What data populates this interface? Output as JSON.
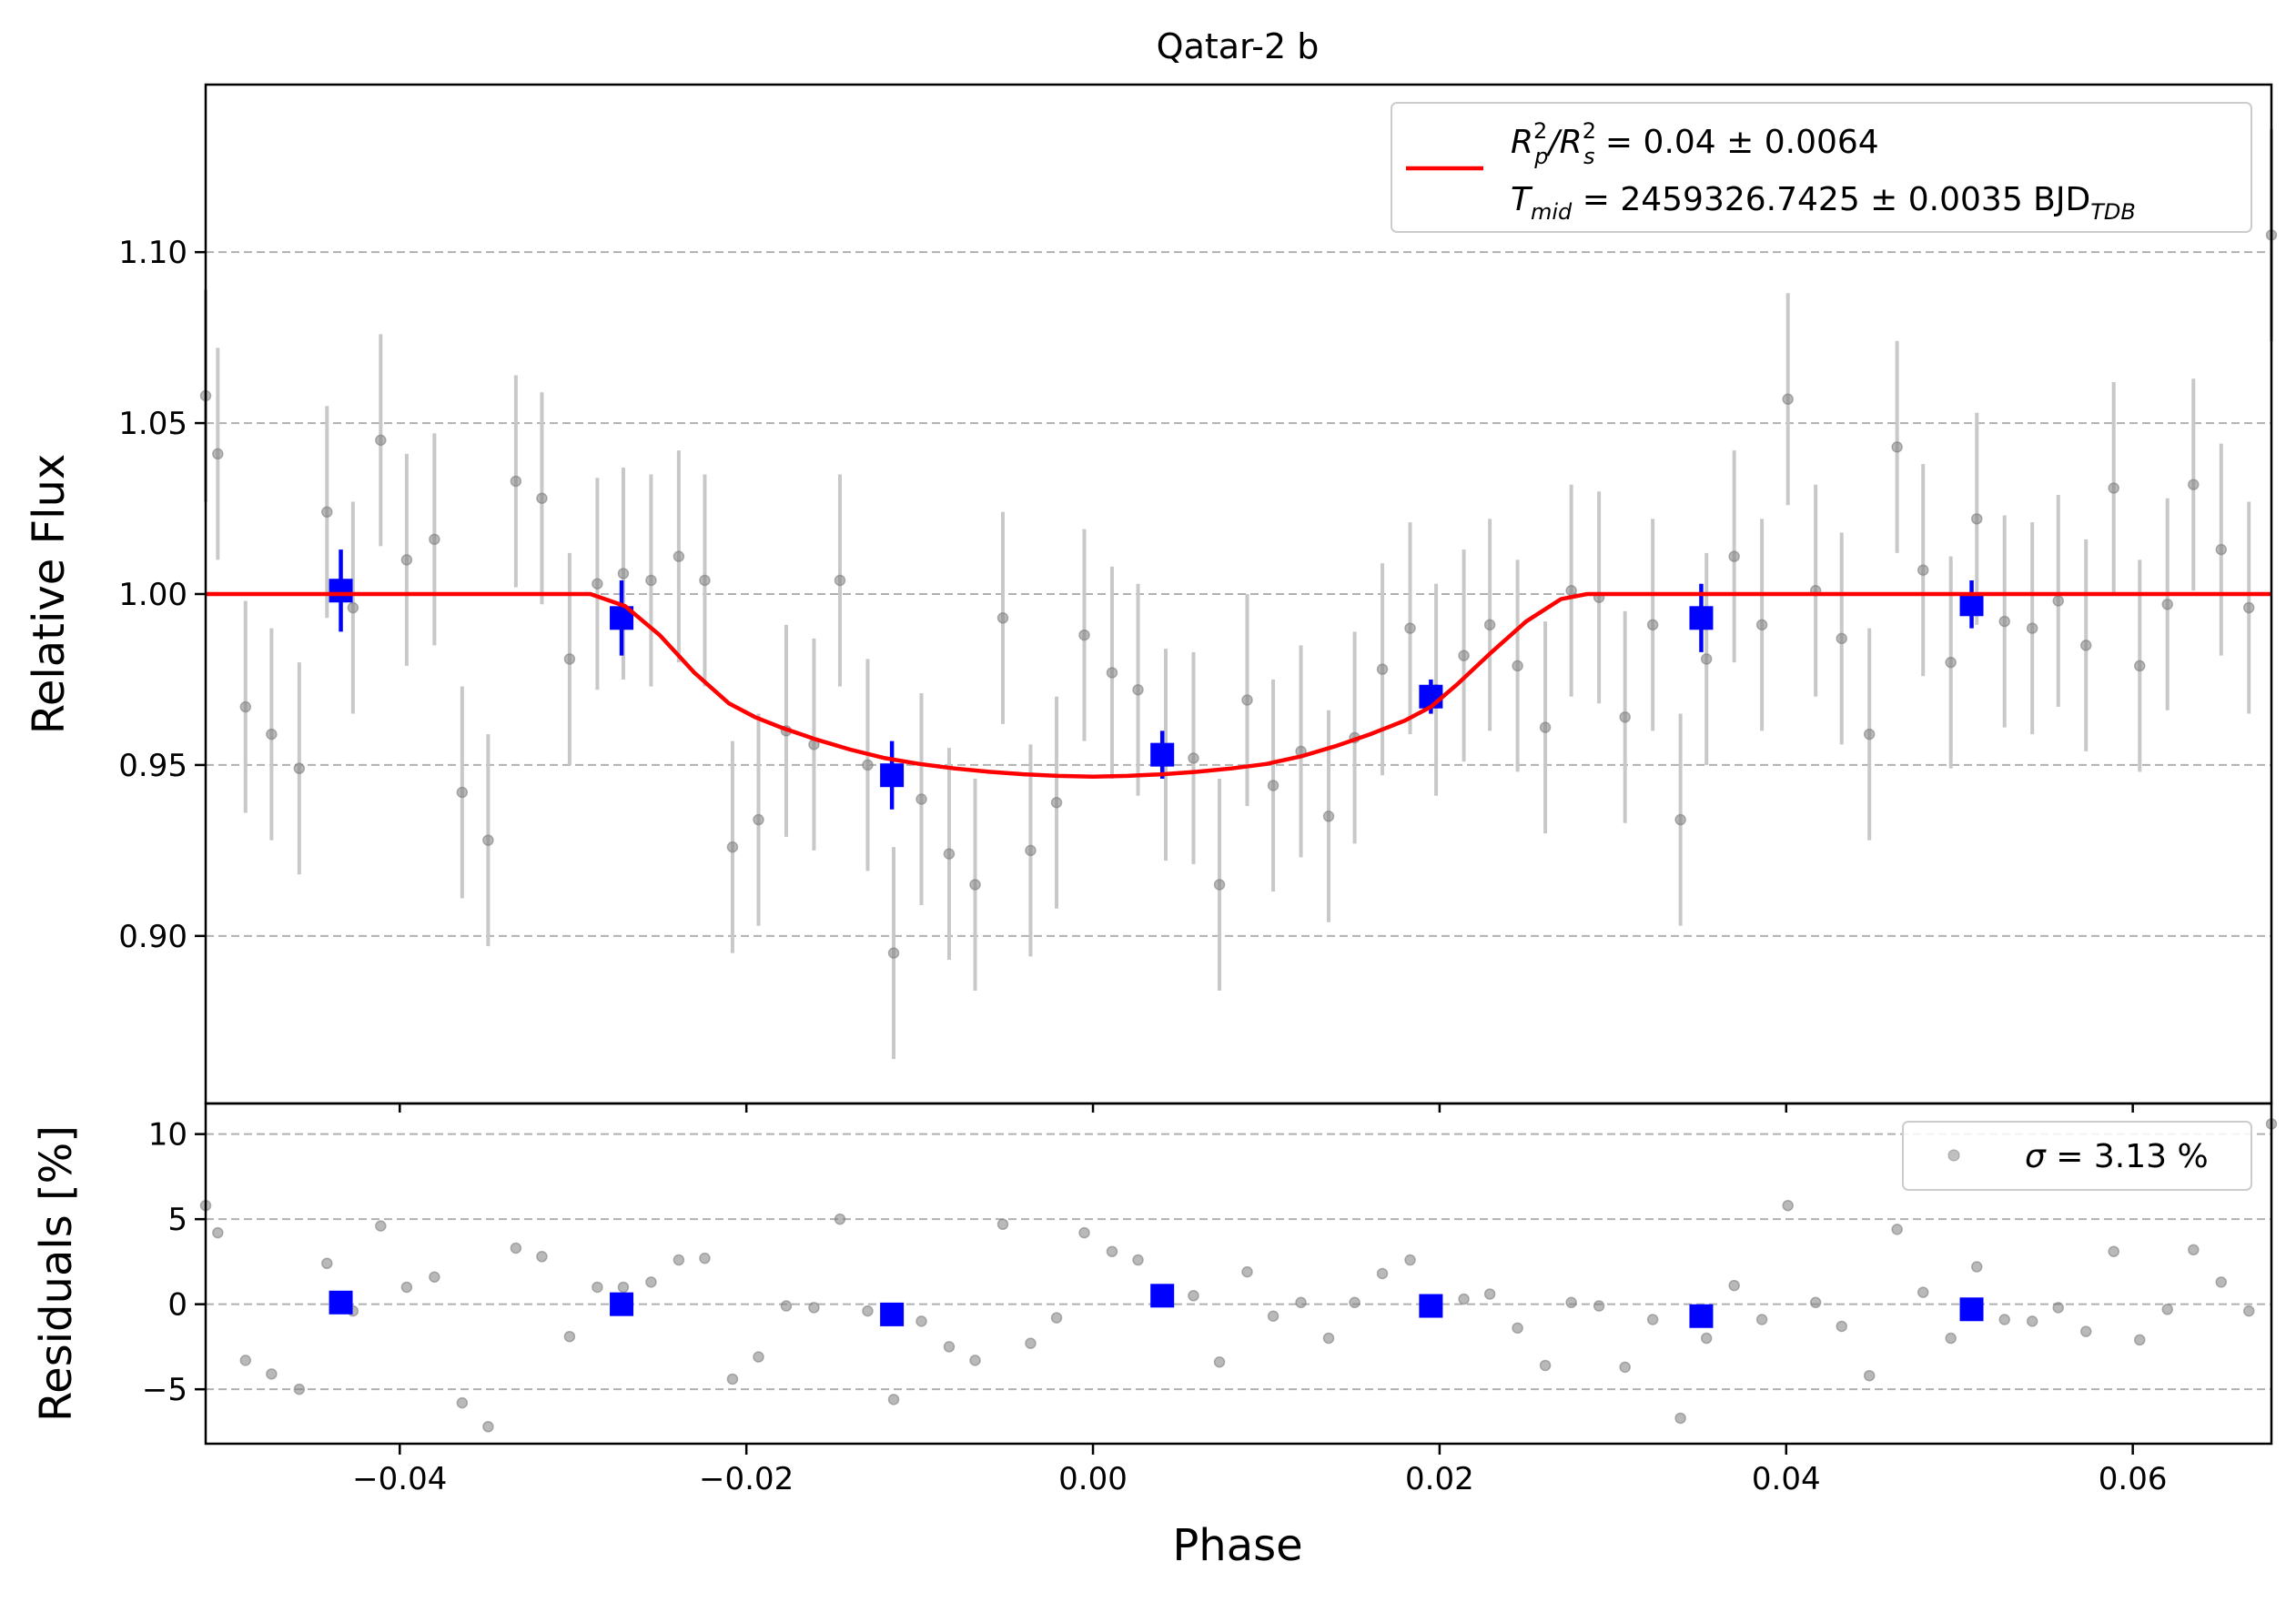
{
  "chart_data": [
    {
      "type": "scatter",
      "title": "Qatar-2 b",
      "xlabel": "",
      "ylabel": "Relative Flux",
      "xlim": [
        -0.0512,
        0.068
      ],
      "ylim": [
        0.851,
        1.149
      ],
      "xticks": [
        -0.04,
        -0.02,
        0.0,
        0.02,
        0.04,
        0.06
      ],
      "xtick_labels": [
        "−0.04",
        "−0.02",
        "0.00",
        "0.02",
        "0.04",
        "0.06"
      ],
      "yticks": [
        0.9,
        0.95,
        1.0,
        1.05,
        1.1
      ],
      "ytick_labels": [
        "0.90",
        "0.95",
        "1.00",
        "1.05",
        "1.10"
      ],
      "grid": "horizontal dashed",
      "legend": {
        "placement": "top-right",
        "line1_prefix": "R",
        "line1_sup1": "2",
        "line1_sub1": "p",
        "line1_slash": "/R",
        "line1_sup2": "2",
        "line1_sub2": "s",
        "line1_value": " = 0.04 ± 0.0064",
        "line2_prefix": "T",
        "line2_sub": "mid",
        "line2_value": " = 2459326.7425 ± 0.0035 BJD",
        "line2_unit_sub": "TDB"
      },
      "model": {
        "color": "#ff0000",
        "depth": 0.0535,
        "x": [
          -0.0512,
          -0.029,
          -0.027,
          -0.025,
          -0.023,
          -0.021,
          -0.0195,
          -0.018,
          -0.016,
          -0.014,
          -0.012,
          -0.01,
          -0.008,
          -0.006,
          -0.004,
          -0.002,
          0.0,
          0.002,
          0.004,
          0.006,
          0.008,
          0.01,
          0.012,
          0.014,
          0.016,
          0.018,
          0.0195,
          0.021,
          0.023,
          0.025,
          0.027,
          0.0285,
          0.068
        ],
        "y": [
          1.0,
          1.0,
          0.9965,
          0.988,
          0.977,
          0.968,
          0.964,
          0.961,
          0.9575,
          0.9545,
          0.952,
          0.9503,
          0.949,
          0.948,
          0.9473,
          0.9468,
          0.9466,
          0.9468,
          0.9473,
          0.948,
          0.949,
          0.9503,
          0.9525,
          0.9555,
          0.959,
          0.963,
          0.967,
          0.9735,
          0.983,
          0.992,
          0.9985,
          1.0,
          1.0
        ]
      },
      "raw": {
        "color": "#808080",
        "x": [
          -0.0512,
          -0.0505,
          -0.0489,
          -0.0474,
          -0.0458,
          -0.0442,
          -0.0427,
          -0.0411,
          -0.0396,
          -0.038,
          -0.0364,
          -0.0349,
          -0.0333,
          -0.0318,
          -0.0302,
          -0.0286,
          -0.0271,
          -0.0255,
          -0.0239,
          -0.0224,
          -0.0208,
          -0.0193,
          -0.0177,
          -0.0161,
          -0.0146,
          -0.013,
          -0.0115,
          -0.0099,
          -0.0083,
          -0.0068,
          -0.0052,
          -0.0036,
          -0.0021,
          -0.0005,
          0.0011,
          0.0026,
          0.0042,
          0.0058,
          0.0073,
          0.0089,
          0.0104,
          0.012,
          0.0136,
          0.0151,
          0.0167,
          0.0183,
          0.0198,
          0.0214,
          0.0229,
          0.0245,
          0.0261,
          0.0276,
          0.0292,
          0.0307,
          0.0323,
          0.0339,
          0.0354,
          0.037,
          0.0386,
          0.0401,
          0.0417,
          0.0432,
          0.0448,
          0.0464,
          0.0479,
          0.0495,
          0.051,
          0.0526,
          0.0542,
          0.0557,
          0.0573,
          0.0589,
          0.0604,
          0.062,
          0.0635,
          0.0651,
          0.0667,
          0.068
        ],
        "y": [
          1.058,
          1.041,
          0.967,
          0.959,
          0.949,
          1.024,
          0.996,
          1.045,
          1.01,
          1.016,
          0.942,
          0.928,
          1.033,
          1.028,
          0.981,
          1.003,
          1.006,
          1.004,
          1.011,
          1.004,
          0.926,
          0.934,
          0.96,
          0.956,
          1.004,
          0.95,
          0.895,
          0.94,
          0.924,
          0.915,
          0.993,
          0.925,
          0.939,
          0.988,
          0.977,
          0.972,
          0.953,
          0.952,
          0.915,
          0.969,
          0.944,
          0.954,
          0.935,
          0.958,
          0.978,
          0.99,
          0.972,
          0.982,
          0.991,
          0.979,
          0.961,
          1.001,
          0.999,
          0.964,
          0.991,
          0.934,
          0.981,
          1.011,
          0.991,
          1.057,
          1.001,
          0.987,
          0.959,
          1.043,
          1.007,
          0.98,
          1.022,
          0.992,
          0.99,
          0.998,
          0.985,
          1.031,
          0.979,
          0.997,
          1.032,
          1.013,
          0.996,
          1.105
        ],
        "yerr": 0.031
      },
      "binned": {
        "color": "#0000ff",
        "x": [
          -0.0434,
          -0.0272,
          -0.0116,
          0.004,
          0.0195,
          0.0351,
          0.0507
        ],
        "y": [
          1.001,
          0.993,
          0.947,
          0.953,
          0.97,
          0.993,
          0.997
        ],
        "yerr": [
          0.012,
          0.011,
          0.01,
          0.007,
          0.005,
          0.01,
          0.007
        ]
      }
    },
    {
      "type": "scatter",
      "title": "",
      "xlabel": "Phase",
      "ylabel": "Residuals [%]",
      "xlim": [
        -0.0512,
        0.068
      ],
      "ylim": [
        -8.2,
        11.8
      ],
      "yticks": [
        -5,
        0,
        5,
        10
      ],
      "ytick_labels": [
        "−5",
        "0",
        "5",
        "10"
      ],
      "grid": "horizontal dashed",
      "legend": {
        "placement": "top-right",
        "sigma_symbol": "σ",
        "sigma_value": " = 3.13 %"
      },
      "raw": {
        "color": "#808080",
        "x": [
          -0.0512,
          -0.0505,
          -0.0489,
          -0.0474,
          -0.0458,
          -0.0442,
          -0.0427,
          -0.0411,
          -0.0396,
          -0.038,
          -0.0364,
          -0.0349,
          -0.0333,
          -0.0318,
          -0.0302,
          -0.0286,
          -0.0271,
          -0.0255,
          -0.0239,
          -0.0224,
          -0.0208,
          -0.0193,
          -0.0177,
          -0.0161,
          -0.0146,
          -0.013,
          -0.0115,
          -0.0099,
          -0.0083,
          -0.0068,
          -0.0052,
          -0.0036,
          -0.0021,
          -0.0005,
          0.0011,
          0.0026,
          0.0042,
          0.0058,
          0.0073,
          0.0089,
          0.0104,
          0.012,
          0.0136,
          0.0151,
          0.0167,
          0.0183,
          0.0198,
          0.0214,
          0.0229,
          0.0245,
          0.0261,
          0.0276,
          0.0292,
          0.0307,
          0.0323,
          0.0339,
          0.0354,
          0.037,
          0.0386,
          0.0401,
          0.0417,
          0.0432,
          0.0448,
          0.0464,
          0.0479,
          0.0495,
          0.051,
          0.0526,
          0.0542,
          0.0557,
          0.0573,
          0.0589,
          0.0604,
          0.062,
          0.0635,
          0.0651,
          0.0667,
          0.068
        ],
        "y": [
          5.8,
          4.2,
          -3.3,
          -4.1,
          -5.0,
          2.4,
          -0.4,
          4.6,
          1.0,
          1.6,
          -5.8,
          -7.2,
          3.3,
          2.8,
          -1.9,
          1.0,
          1.0,
          1.3,
          2.6,
          2.7,
          -4.4,
          -3.1,
          -0.1,
          -0.2,
          5.0,
          -0.4,
          -5.6,
          -1.0,
          -2.5,
          -3.3,
          4.7,
          -2.3,
          -0.8,
          4.2,
          3.1,
          2.6,
          0.2,
          0.5,
          -3.4,
          1.9,
          -0.7,
          0.1,
          -2.0,
          0.1,
          1.8,
          2.6,
          0.2,
          0.3,
          0.6,
          -1.4,
          -3.6,
          0.1,
          -0.1,
          -3.7,
          -0.9,
          -6.7,
          -2.0,
          1.1,
          -0.9,
          5.8,
          0.1,
          -1.3,
          -4.2,
          4.4,
          0.7,
          -2.0,
          2.2,
          -0.9,
          -1.0,
          -0.2,
          -1.6,
          3.1,
          -2.1,
          -0.3,
          3.2,
          1.3,
          -0.4,
          10.6
        ]
      },
      "binned": {
        "color": "#0000ff",
        "x": [
          -0.0434,
          -0.0272,
          -0.0116,
          0.004,
          0.0195,
          0.0351,
          0.0507
        ],
        "y": [
          0.1,
          0.0,
          -0.6,
          0.5,
          -0.1,
          -0.7,
          -0.3
        ]
      }
    }
  ],
  "xaxis": {
    "label": "Phase",
    "tick_labels": [
      "−0.04",
      "−0.02",
      "0.00",
      "0.02",
      "0.04",
      "0.06"
    ]
  }
}
